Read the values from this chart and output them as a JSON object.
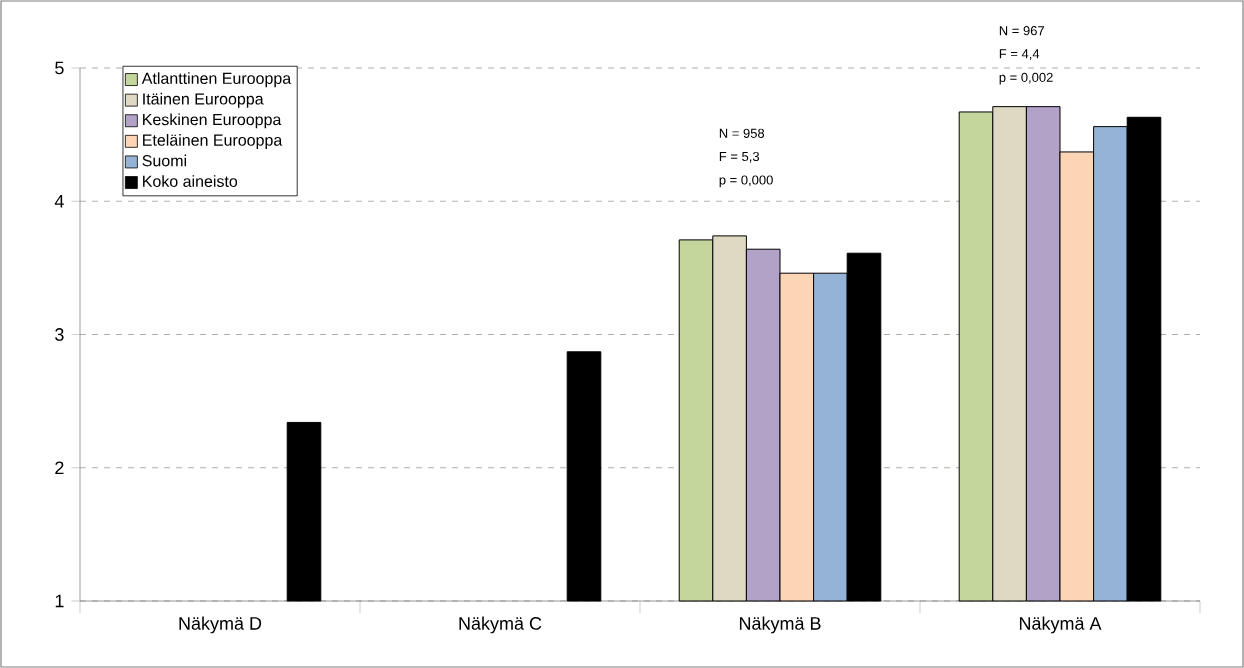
{
  "chart_data": {
    "type": "bar",
    "categories": [
      "Näkymä D",
      "Näkymä C",
      "Näkymä B",
      "Näkymä A"
    ],
    "series": [
      {
        "name": "Atlanttinen Eurooppa",
        "color": "#c3d69b",
        "values": [
          null,
          null,
          3.71,
          4.67
        ]
      },
      {
        "name": "Itäinen Eurooppa",
        "color": "#ddd9c3",
        "values": [
          null,
          null,
          3.74,
          4.71
        ]
      },
      {
        "name": "Keskinen Eurooppa",
        "color": "#b3a2c7",
        "values": [
          null,
          null,
          3.64,
          4.71
        ]
      },
      {
        "name": "Eteläinen Eurooppa",
        "color": "#fcd5b5",
        "values": [
          null,
          null,
          3.46,
          4.37
        ]
      },
      {
        "name": "Suomi",
        "color": "#95b3d7",
        "values": [
          null,
          null,
          3.46,
          4.56
        ]
      },
      {
        "name": "Koko aineisto",
        "color": "#000000",
        "values": [
          2.34,
          2.87,
          3.61,
          4.63
        ]
      }
    ],
    "ylim": [
      1,
      5
    ],
    "yticks": [
      1,
      2,
      3,
      4,
      5
    ],
    "grid": "y",
    "legend": "top left",
    "annotations": [
      "N = 958",
      "F = 5,3",
      "p = 0,000",
      "N = 967",
      "F = 4,4",
      "p = 0,002"
    ]
  }
}
